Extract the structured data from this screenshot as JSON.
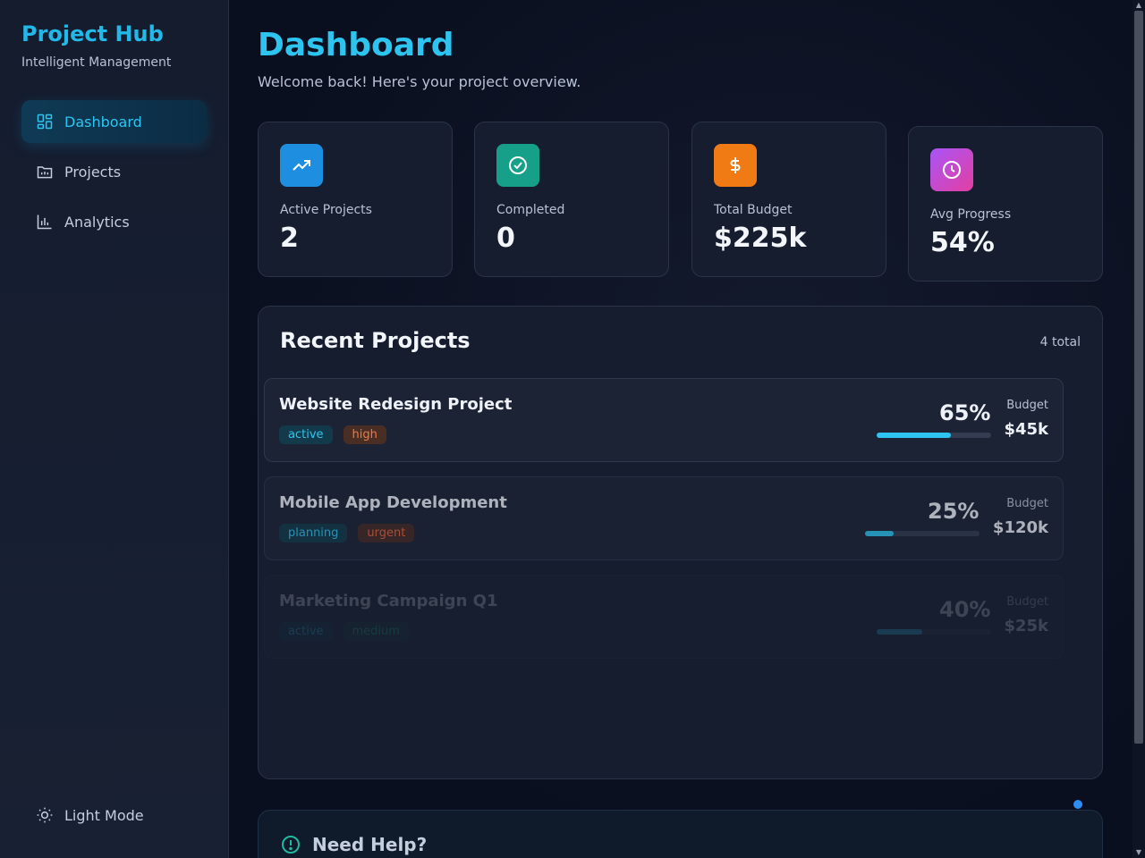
{
  "sidebar": {
    "brand_title": "Project Hub",
    "brand_subtitle": "Intelligent Management",
    "nav": [
      {
        "label": "Dashboard",
        "icon": "dashboard-icon",
        "active": true
      },
      {
        "label": "Projects",
        "icon": "folder-icon",
        "active": false
      },
      {
        "label": "Analytics",
        "icon": "bar-chart-icon",
        "active": false
      }
    ],
    "theme_toggle_label": "Light Mode"
  },
  "header": {
    "title": "Dashboard",
    "subtitle": "Welcome back! Here's your project overview."
  },
  "stats": [
    {
      "label": "Active Projects",
      "value": "2",
      "icon": "trending-up-icon",
      "color": "#1e8fe0"
    },
    {
      "label": "Completed",
      "value": "0",
      "icon": "check-circle-icon",
      "color": "#16a08a"
    },
    {
      "label": "Total Budget",
      "value": "$225k",
      "icon": "dollar-icon",
      "color": "#f07a14"
    },
    {
      "label": "Avg Progress",
      "value": "54%",
      "icon": "clock-icon",
      "color": "#c53fd6"
    }
  ],
  "recent_projects": {
    "title": "Recent Projects",
    "count_label": "4 total",
    "budget_label": "Budget",
    "items": [
      {
        "name": "Website Redesign Project",
        "status": "active",
        "priority": "high",
        "progress_label": "65%",
        "progress": 0.65,
        "budget": "$45k"
      },
      {
        "name": "Mobile App Development",
        "status": "planning",
        "priority": "urgent",
        "progress_label": "25%",
        "progress": 0.25,
        "budget": "$120k"
      },
      {
        "name": "Marketing Campaign Q1",
        "status": "active",
        "priority": "medium",
        "progress_label": "40%",
        "progress": 0.4,
        "budget": "$25k"
      }
    ]
  },
  "help": {
    "title": "Need Help?"
  }
}
